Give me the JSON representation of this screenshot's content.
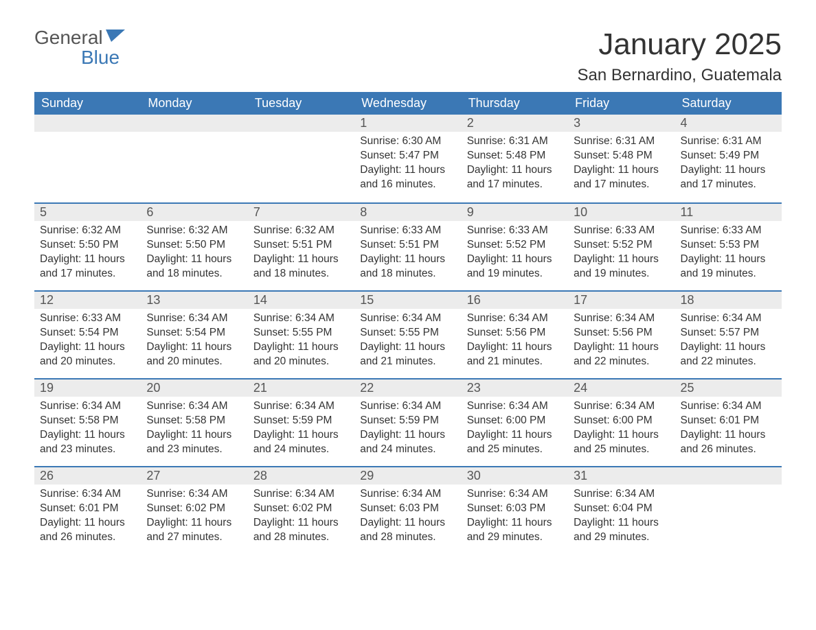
{
  "brand": {
    "word1": "General",
    "word2": "Blue"
  },
  "title": "January 2025",
  "location": "San Bernardino, Guatemala",
  "colors": {
    "header_bg": "#3b78b5",
    "header_text": "#ffffff",
    "daynum_bg": "#ececec",
    "rule": "#3b78b5",
    "body_text": "#333333",
    "page_bg": "#ffffff"
  },
  "day_labels": [
    "Sunday",
    "Monday",
    "Tuesday",
    "Wednesday",
    "Thursday",
    "Friday",
    "Saturday"
  ],
  "first_weekday_index": 3,
  "days": [
    {
      "n": 1,
      "sunrise": "6:30 AM",
      "sunset": "5:47 PM",
      "daylight": "11 hours and 16 minutes."
    },
    {
      "n": 2,
      "sunrise": "6:31 AM",
      "sunset": "5:48 PM",
      "daylight": "11 hours and 17 minutes."
    },
    {
      "n": 3,
      "sunrise": "6:31 AM",
      "sunset": "5:48 PM",
      "daylight": "11 hours and 17 minutes."
    },
    {
      "n": 4,
      "sunrise": "6:31 AM",
      "sunset": "5:49 PM",
      "daylight": "11 hours and 17 minutes."
    },
    {
      "n": 5,
      "sunrise": "6:32 AM",
      "sunset": "5:50 PM",
      "daylight": "11 hours and 17 minutes."
    },
    {
      "n": 6,
      "sunrise": "6:32 AM",
      "sunset": "5:50 PM",
      "daylight": "11 hours and 18 minutes."
    },
    {
      "n": 7,
      "sunrise": "6:32 AM",
      "sunset": "5:51 PM",
      "daylight": "11 hours and 18 minutes."
    },
    {
      "n": 8,
      "sunrise": "6:33 AM",
      "sunset": "5:51 PM",
      "daylight": "11 hours and 18 minutes."
    },
    {
      "n": 9,
      "sunrise": "6:33 AM",
      "sunset": "5:52 PM",
      "daylight": "11 hours and 19 minutes."
    },
    {
      "n": 10,
      "sunrise": "6:33 AM",
      "sunset": "5:52 PM",
      "daylight": "11 hours and 19 minutes."
    },
    {
      "n": 11,
      "sunrise": "6:33 AM",
      "sunset": "5:53 PM",
      "daylight": "11 hours and 19 minutes."
    },
    {
      "n": 12,
      "sunrise": "6:33 AM",
      "sunset": "5:54 PM",
      "daylight": "11 hours and 20 minutes."
    },
    {
      "n": 13,
      "sunrise": "6:34 AM",
      "sunset": "5:54 PM",
      "daylight": "11 hours and 20 minutes."
    },
    {
      "n": 14,
      "sunrise": "6:34 AM",
      "sunset": "5:55 PM",
      "daylight": "11 hours and 20 minutes."
    },
    {
      "n": 15,
      "sunrise": "6:34 AM",
      "sunset": "5:55 PM",
      "daylight": "11 hours and 21 minutes."
    },
    {
      "n": 16,
      "sunrise": "6:34 AM",
      "sunset": "5:56 PM",
      "daylight": "11 hours and 21 minutes."
    },
    {
      "n": 17,
      "sunrise": "6:34 AM",
      "sunset": "5:56 PM",
      "daylight": "11 hours and 22 minutes."
    },
    {
      "n": 18,
      "sunrise": "6:34 AM",
      "sunset": "5:57 PM",
      "daylight": "11 hours and 22 minutes."
    },
    {
      "n": 19,
      "sunrise": "6:34 AM",
      "sunset": "5:58 PM",
      "daylight": "11 hours and 23 minutes."
    },
    {
      "n": 20,
      "sunrise": "6:34 AM",
      "sunset": "5:58 PM",
      "daylight": "11 hours and 23 minutes."
    },
    {
      "n": 21,
      "sunrise": "6:34 AM",
      "sunset": "5:59 PM",
      "daylight": "11 hours and 24 minutes."
    },
    {
      "n": 22,
      "sunrise": "6:34 AM",
      "sunset": "5:59 PM",
      "daylight": "11 hours and 24 minutes."
    },
    {
      "n": 23,
      "sunrise": "6:34 AM",
      "sunset": "6:00 PM",
      "daylight": "11 hours and 25 minutes."
    },
    {
      "n": 24,
      "sunrise": "6:34 AM",
      "sunset": "6:00 PM",
      "daylight": "11 hours and 25 minutes."
    },
    {
      "n": 25,
      "sunrise": "6:34 AM",
      "sunset": "6:01 PM",
      "daylight": "11 hours and 26 minutes."
    },
    {
      "n": 26,
      "sunrise": "6:34 AM",
      "sunset": "6:01 PM",
      "daylight": "11 hours and 26 minutes."
    },
    {
      "n": 27,
      "sunrise": "6:34 AM",
      "sunset": "6:02 PM",
      "daylight": "11 hours and 27 minutes."
    },
    {
      "n": 28,
      "sunrise": "6:34 AM",
      "sunset": "6:02 PM",
      "daylight": "11 hours and 28 minutes."
    },
    {
      "n": 29,
      "sunrise": "6:34 AM",
      "sunset": "6:03 PM",
      "daylight": "11 hours and 28 minutes."
    },
    {
      "n": 30,
      "sunrise": "6:34 AM",
      "sunset": "6:03 PM",
      "daylight": "11 hours and 29 minutes."
    },
    {
      "n": 31,
      "sunrise": "6:34 AM",
      "sunset": "6:04 PM",
      "daylight": "11 hours and 29 minutes."
    }
  ],
  "labels": {
    "sunrise": "Sunrise:",
    "sunset": "Sunset:",
    "daylight": "Daylight:"
  }
}
